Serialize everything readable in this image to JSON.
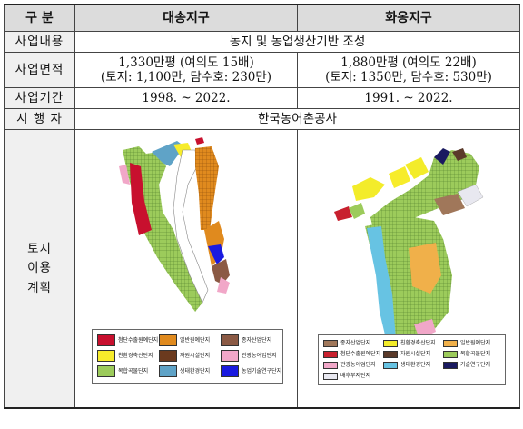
{
  "header": {
    "col_label": "구  분",
    "west": "대송지구",
    "east": "화옹지구"
  },
  "rows": {
    "purpose": {
      "label": "사업내용",
      "value": "농지 및 농업생산기반 조성"
    },
    "area": {
      "label": "사업면적",
      "west_line1": "1,330만평 (여의도 15배)",
      "west_line2": "(토지: 1,100만, 담수호: 230만)",
      "east_line1": "1,880만평 (여의도 22배)",
      "east_line2": "(토지: 1350만, 담수호: 530만)"
    },
    "period": {
      "label": "사업기간",
      "west": "1998. ~ 2022.",
      "east": "1991. ~ 2022."
    },
    "operator": {
      "label": "시 행 자",
      "value": "한국농어촌공사"
    },
    "landuse": {
      "label_lines": [
        "토지",
        "이용",
        "계획"
      ]
    }
  },
  "legend_west": [
    {
      "label": "첨단수출원예단지",
      "color": "#c8102e"
    },
    {
      "label": "일반원예단지",
      "color": "#e08a1e"
    },
    {
      "label": "종자산업단지",
      "color": "#8b5a44"
    },
    {
      "label": "친환경축산단지",
      "color": "#f7ec2b"
    },
    {
      "label": "자원시설단지",
      "color": "#6b3a1e"
    },
    {
      "label": "관광농어업단지",
      "color": "#f1a7c8"
    },
    {
      "label": "복합곡물단지",
      "color": "#9ccb5b"
    },
    {
      "label": "생태환경단지",
      "color": "#5fa3c7"
    },
    {
      "label": "농업기술연구단지",
      "color": "#1a1ae0"
    }
  ],
  "legend_east": [
    {
      "label": "종자산업단지",
      "color": "#a0775a"
    },
    {
      "label": "친환경축산단지",
      "color": "#f3ec2a"
    },
    {
      "label": "일반원예단지",
      "color": "#f0b04a"
    },
    {
      "label": "첨단수출원예단지",
      "color": "#c8202e"
    },
    {
      "label": "자원시설단지",
      "color": "#5a3a2a"
    },
    {
      "label": "복합곡물단지",
      "color": "#9ccb5b"
    },
    {
      "label": "관광농어업단지",
      "color": "#f1a7c8"
    },
    {
      "label": "생태환경단지",
      "color": "#67c3e3"
    },
    {
      "label": "기술연구단지",
      "color": "#1a1a60"
    },
    {
      "label": "배후부지단지",
      "color": "#e8e8f0"
    }
  ]
}
